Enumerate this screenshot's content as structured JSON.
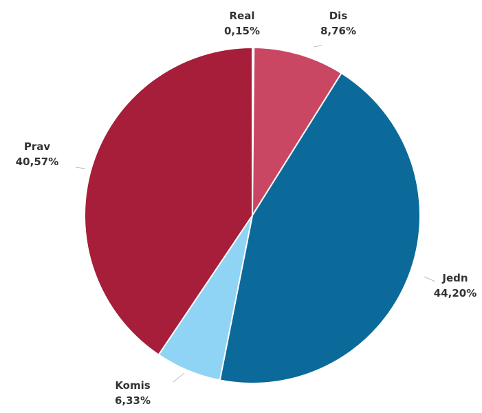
{
  "chart_data": {
    "type": "pie",
    "title": "",
    "slices": [
      {
        "label": "Real",
        "value": 0.15,
        "value_label": "0,15%",
        "color": "#D44F6A"
      },
      {
        "label": "Dis",
        "value": 8.76,
        "value_label": "8,76%",
        "color": "#C94763"
      },
      {
        "label": "Jedn",
        "value": 44.2,
        "value_label": "44,20%",
        "color": "#0B6A99"
      },
      {
        "label": "Komis",
        "value": 6.33,
        "value_label": "6,33%",
        "color": "#8FD3F5"
      },
      {
        "label": "Prav",
        "value": 40.57,
        "value_label": "40,57%",
        "color": "#A71E3A"
      }
    ],
    "start_angle_deg": 0,
    "direction": "clockwise",
    "legend": "none",
    "data_labels": "outside"
  }
}
